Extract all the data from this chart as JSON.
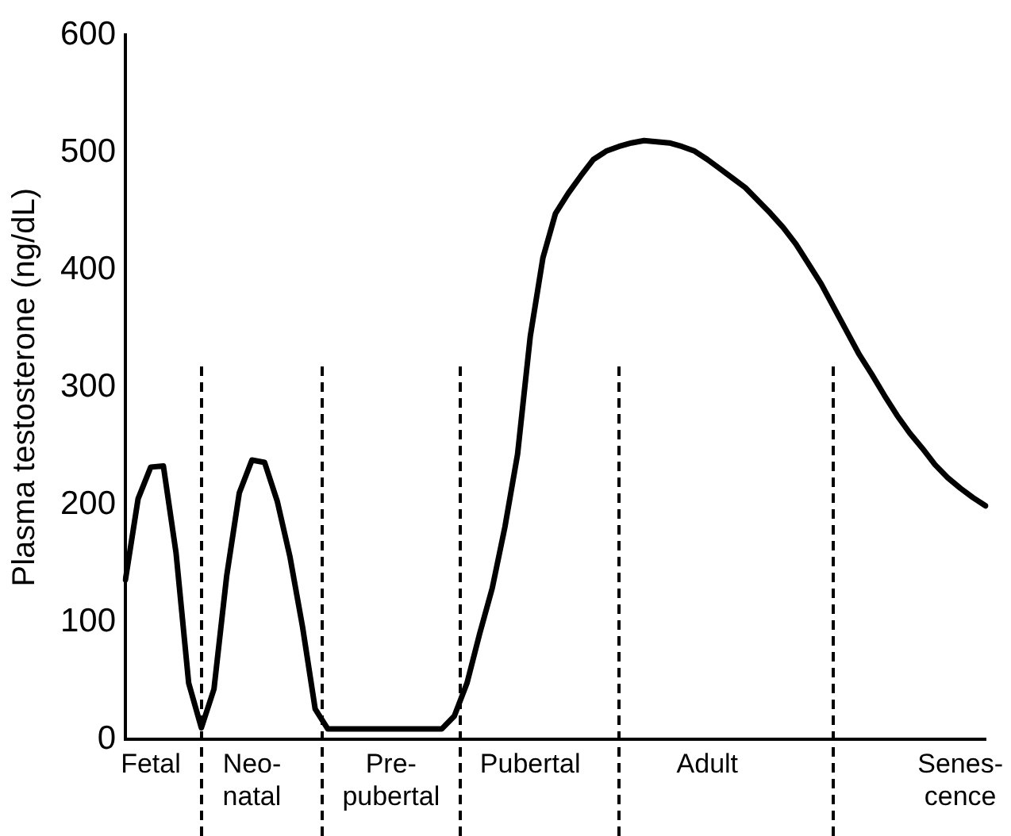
{
  "chart_data": {
    "type": "line",
    "ylabel": "Plasma testosterone (ng/dL)",
    "categories": [
      null,
      null,
      "Fetal",
      null,
      null,
      null,
      null,
      null,
      null,
      null,
      "Neo-\nnatal",
      null,
      null,
      null,
      null,
      null,
      null,
      null,
      null,
      null,
      null,
      "Pre-\npubertal",
      null,
      null,
      null,
      null,
      null,
      null,
      null,
      null,
      null,
      null,
      "Pubertal",
      null,
      null,
      null,
      null,
      null,
      null,
      null,
      null,
      null,
      null,
      null,
      null,
      null,
      "Adult",
      null,
      null,
      null,
      null,
      null,
      null,
      null,
      null,
      null,
      null,
      null,
      null,
      null,
      null,
      null,
      null,
      null,
      null,
      null,
      "Senes-\ncence",
      null,
      null
    ],
    "ylim": [
      0,
      600
    ],
    "yticks": [
      0,
      100,
      200,
      300,
      400,
      500,
      600
    ],
    "grid": false,
    "legend": false,
    "marker": "none",
    "line_style": "solid",
    "series": [
      {
        "color": "#000000",
        "values": [
          136,
          205,
          232,
          233,
          159,
          48,
          10,
          43,
          139,
          210,
          238,
          236,
          203,
          156,
          96,
          26,
          9,
          9,
          9,
          9,
          9,
          9,
          9,
          9,
          9,
          9,
          20,
          48,
          90,
          129,
          181,
          243,
          343,
          410,
          448,
          465,
          480,
          494,
          501,
          505,
          508,
          510,
          509,
          508,
          505,
          501,
          494,
          486,
          478,
          470,
          459,
          448,
          436,
          422,
          405,
          388,
          368,
          348,
          328,
          311,
          293,
          276,
          261,
          248,
          234,
          223,
          214,
          206,
          199
        ]
      }
    ]
  }
}
